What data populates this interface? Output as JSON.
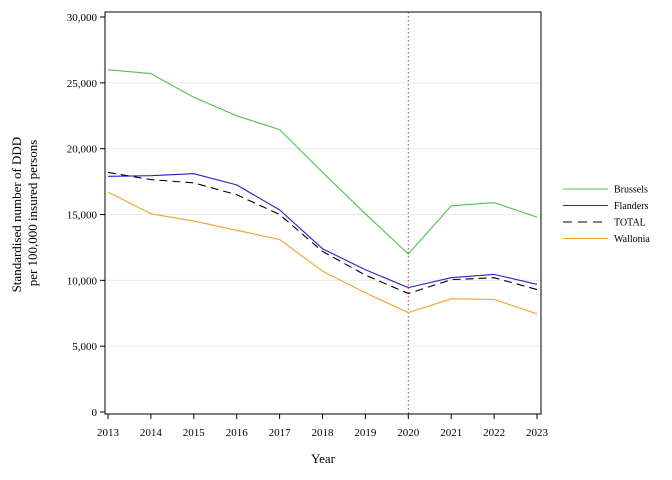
{
  "chart_data": {
    "type": "line",
    "title": "",
    "xlabel": "Year",
    "ylabel_lines": [
      "Standardised number of DDD",
      "per 100,000 insured persons"
    ],
    "x": [
      2013,
      2014,
      2015,
      2016,
      2017,
      2018,
      2019,
      2020,
      2021,
      2022,
      2023
    ],
    "x_tick_labels": [
      "2013",
      "2014",
      "2015",
      "2016",
      "2017",
      "2018",
      "2019",
      "2020",
      "2021",
      "2022",
      "2023"
    ],
    "ylim": [
      0,
      30000
    ],
    "y_ticks": [
      0,
      5000,
      10000,
      15000,
      20000,
      25000,
      30000
    ],
    "y_tick_labels": [
      "0",
      "5,000",
      "10,000",
      "15,000",
      "20,000",
      "25,000",
      "30,000"
    ],
    "grid": "horizontal",
    "reference_line": {
      "x": 2020,
      "color": "#c0394b",
      "style": "dotted"
    },
    "legend_position": "right",
    "series": [
      {
        "name": "Brussels",
        "color": "#4cc44c",
        "dash": "none",
        "values": [
          26000,
          25700,
          23900,
          22500,
          21450,
          18200,
          15050,
          12000,
          15650,
          15900,
          14800
        ]
      },
      {
        "name": "Flanders",
        "color": "#2222cc",
        "dash": "none",
        "values": [
          17900,
          17950,
          18100,
          17250,
          15350,
          12400,
          10800,
          9450,
          10200,
          10450,
          9700
        ]
      },
      {
        "name": "TOTAL",
        "color": "#000000",
        "dash": "8,5",
        "values": [
          18200,
          17650,
          17400,
          16500,
          15000,
          12200,
          10400,
          9000,
          10050,
          10200,
          9300
        ]
      },
      {
        "name": "Wallonia",
        "color": "#f5a030",
        "dash": "none",
        "values": [
          16700,
          15050,
          14500,
          13800,
          13100,
          10700,
          9050,
          7550,
          8600,
          8550,
          7450
        ]
      }
    ]
  }
}
